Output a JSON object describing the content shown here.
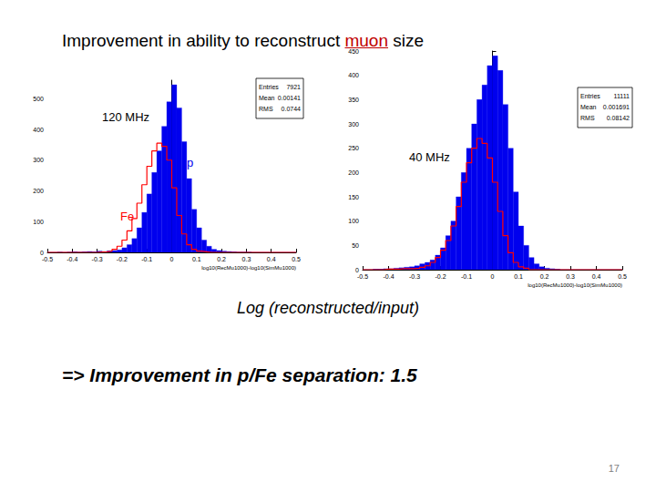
{
  "title": [
    "Improvement in ability to reconstruct",
    "muon",
    "size"
  ],
  "caption": "Log (reconstructed/input)",
  "conclusion": "=> Improvement in p/Fe separation:  1.5",
  "page_number": 17,
  "chart_data": [
    {
      "type": "histogram",
      "title": "120 MHz",
      "x_label": "log10(RecMu1000)-log10(SimMu1000)",
      "stats": [
        {
          "label": "Entries",
          "value": 7921
        },
        {
          "label": "Mean",
          "value": 0.00141
        },
        {
          "label": "RMS",
          "value": 0.0744
        }
      ],
      "bins": [
        -0.5,
        -0.48,
        -0.46,
        -0.44,
        -0.42,
        -0.4,
        -0.38,
        -0.36,
        -0.34,
        -0.32,
        -0.3,
        -0.28,
        -0.26,
        -0.24,
        -0.22,
        -0.2,
        -0.18,
        -0.16,
        -0.14,
        -0.12,
        -0.1,
        -0.08,
        -0.06,
        -0.04,
        -0.02,
        0,
        0.02,
        0.04,
        0.06,
        0.08,
        0.1,
        0.12,
        0.14,
        0.16,
        0.18,
        0.2,
        0.22,
        0.24,
        0.26,
        0.28,
        0.3,
        0.32,
        0.34,
        0.36,
        0.38,
        0.4,
        0.42,
        0.44,
        0.46,
        0.48,
        0.5
      ],
      "series": [
        {
          "name": "p",
          "type": "bar",
          "color": "#0000ee",
          "values": [
            0,
            0,
            1,
            0,
            1,
            2,
            1,
            2,
            3,
            2,
            4,
            3,
            5,
            6,
            8,
            15,
            25,
            45,
            80,
            130,
            190,
            260,
            330,
            410,
            490,
            545,
            470,
            360,
            240,
            140,
            80,
            40,
            20,
            10,
            6,
            4,
            3,
            2,
            1,
            1,
            1,
            0,
            0,
            0,
            0,
            0,
            0,
            0,
            0,
            0
          ]
        },
        {
          "name": "Fe",
          "type": "step",
          "color": "#ff0000",
          "values": [
            0,
            0,
            0,
            0,
            0,
            0,
            0,
            0,
            0,
            0,
            1,
            2,
            4,
            10,
            20,
            40,
            70,
            110,
            160,
            220,
            280,
            330,
            355,
            345,
            300,
            210,
            120,
            60,
            25,
            10,
            4,
            2,
            0,
            0,
            0,
            0,
            0,
            0,
            0,
            0,
            0,
            0,
            0,
            0,
            0,
            0,
            0,
            0,
            0,
            0
          ]
        }
      ],
      "xlim": [
        -0.5,
        0.5
      ],
      "xticks": [
        -0.5,
        -0.4,
        -0.3,
        -0.2,
        -0.1,
        0,
        0.1,
        0.2,
        0.3,
        0.4,
        0.5
      ],
      "ylim": [
        0,
        560
      ],
      "yticks": [
        0,
        100,
        200,
        300,
        400,
        500
      ],
      "grid": false
    },
    {
      "type": "histogram",
      "title": "40 MHz",
      "x_label": "log10(RecMu1000)-log10(SimMu1000)",
      "stats": [
        {
          "label": "Entries",
          "value": 11111
        },
        {
          "label": "Mean",
          "value": 0.001691
        },
        {
          "label": "RMS",
          "value": 0.08142
        }
      ],
      "bins": [
        -0.5,
        -0.48,
        -0.46,
        -0.44,
        -0.42,
        -0.4,
        -0.38,
        -0.36,
        -0.34,
        -0.32,
        -0.3,
        -0.28,
        -0.26,
        -0.24,
        -0.22,
        -0.2,
        -0.18,
        -0.16,
        -0.14,
        -0.12,
        -0.1,
        -0.08,
        -0.06,
        -0.04,
        -0.02,
        0,
        0.02,
        0.04,
        0.06,
        0.08,
        0.1,
        0.12,
        0.14,
        0.16,
        0.18,
        0.2,
        0.22,
        0.24,
        0.26,
        0.28,
        0.3,
        0.32,
        0.34,
        0.36,
        0.38,
        0.4,
        0.42,
        0.44,
        0.46,
        0.48,
        0.5
      ],
      "series": [
        {
          "type": "bar",
          "color": "#0000ee",
          "values": [
            0,
            0,
            1,
            1,
            2,
            2,
            3,
            4,
            5,
            6,
            8,
            12,
            15,
            20,
            30,
            45,
            70,
            100,
            150,
            200,
            250,
            300,
            350,
            380,
            420,
            440,
            410,
            340,
            250,
            160,
            90,
            50,
            25,
            12,
            6,
            3,
            2,
            1,
            0,
            0,
            0,
            0,
            0,
            0,
            0,
            0,
            0,
            0,
            0,
            0
          ]
        },
        {
          "type": "step",
          "color": "#ff0000",
          "values": [
            0,
            0,
            0,
            0,
            1,
            1,
            1,
            2,
            2,
            2,
            3,
            5,
            8,
            15,
            25,
            40,
            60,
            90,
            130,
            180,
            220,
            250,
            270,
            260,
            230,
            180,
            120,
            70,
            35,
            15,
            6,
            3,
            0,
            0,
            0,
            0,
            0,
            0,
            0,
            0,
            0,
            0,
            0,
            0,
            0,
            0,
            0,
            0,
            0,
            0
          ]
        }
      ],
      "xlim": [
        -0.5,
        0.5
      ],
      "xticks": [
        -0.5,
        -0.4,
        -0.3,
        -0.2,
        -0.1,
        0,
        0.1,
        0.2,
        0.3,
        0.4,
        0.5
      ],
      "ylim": [
        0,
        450
      ],
      "yticks": [
        0,
        50,
        100,
        150,
        200,
        250,
        300,
        350,
        400,
        450
      ],
      "grid": false
    }
  ]
}
